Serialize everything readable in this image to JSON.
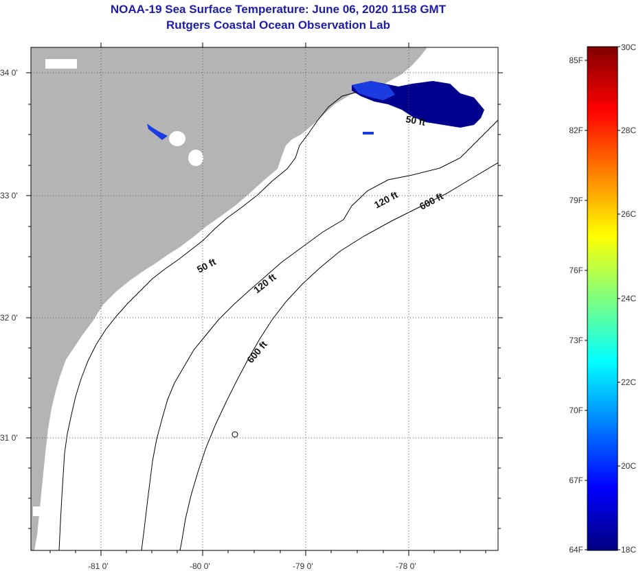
{
  "title": "NOAA-19 Sea Surface Temperature:  June 06, 2020 1158 GMT",
  "subtitle": "Rutgers Coastal Ocean Observation Lab",
  "map": {
    "lat_labels": [
      "34 0'",
      "33 0'",
      "32 0'",
      "31 0'"
    ],
    "lon_labels": [
      "-81 0'",
      "-80 0'",
      "-79 0'",
      "-78 0'"
    ],
    "contour_labels": [
      {
        "text": "50 ft",
        "depth": 50
      },
      {
        "text": "50 ft",
        "depth": 50
      },
      {
        "text": "120 ft",
        "depth": 120
      },
      {
        "text": "120 ft",
        "depth": 120
      },
      {
        "text": "600 ft",
        "depth": 600
      },
      {
        "text": "600 ft",
        "depth": 600
      }
    ],
    "colors": {
      "land": "#b4b4b4",
      "sst_patch": "#00008f",
      "sst_patch_light": "#1a3ce0",
      "contour": "#000000",
      "grid": "#555555"
    }
  },
  "colorbar": {
    "fahrenheit_labels": [
      "85F",
      "82F",
      "79F",
      "76F",
      "73F",
      "70F",
      "67F",
      "64F"
    ],
    "celsius_labels": [
      "30C",
      "28C",
      "26C",
      "24C",
      "22C",
      "20C",
      "18C"
    ],
    "range_c": [
      18,
      30
    ],
    "colormap": "jet"
  }
}
